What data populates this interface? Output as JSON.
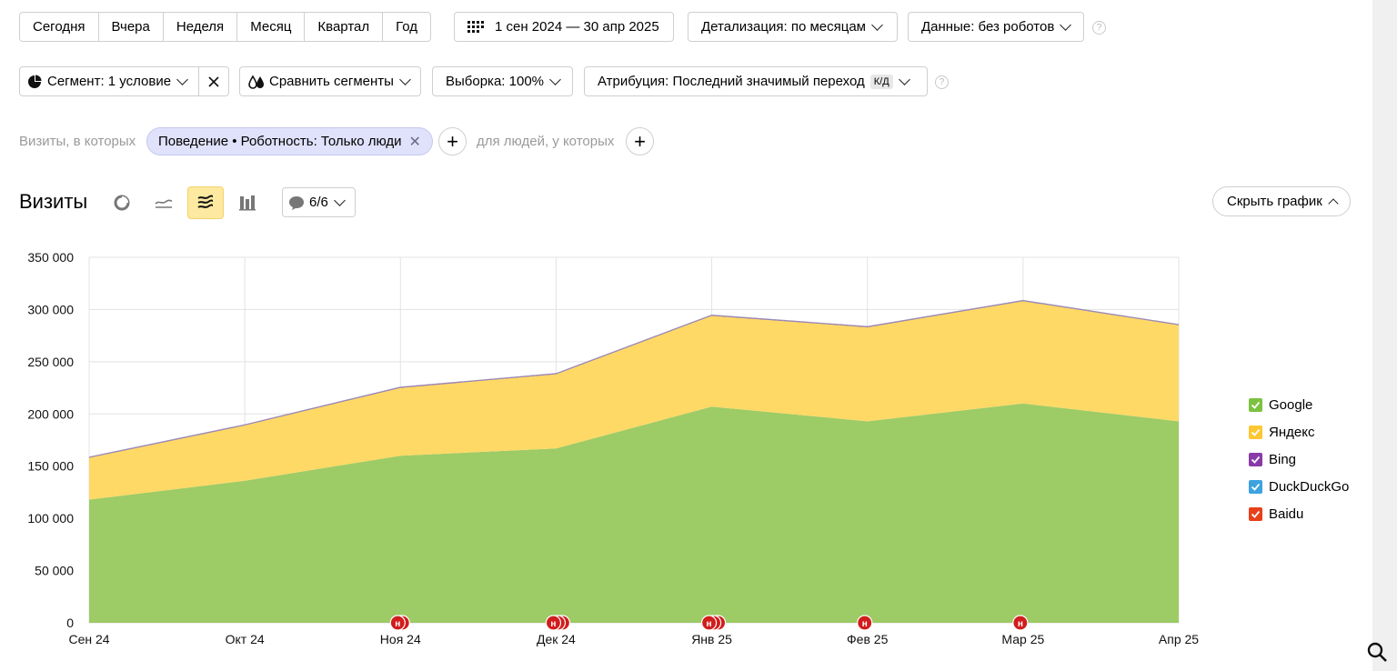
{
  "periods": [
    "Сегодня",
    "Вчера",
    "Неделя",
    "Месяц",
    "Квартал",
    "Год"
  ],
  "date_range": "1 сен 2024 — 30 апр 2025",
  "detail": "Детализация: по месяцам",
  "data_filter": "Данные: без роботов",
  "segment": "Сегмент: 1 условие",
  "compare": "Сравнить сегменты",
  "sample": "Выборка: 100%",
  "attribution": "Атрибуция: Последний значимый переход",
  "attribution_badge": "К/Д",
  "filter_prefix": "Визиты, в которых",
  "filter_chip": "Поведение • Роботность: Только люди",
  "people_suffix": "для людей, у которых",
  "chart_title": "Визиты",
  "notes_count": "6/6",
  "hide_chart": "Скрыть график",
  "legend": [
    {
      "name": "Google",
      "color": "#7cc241"
    },
    {
      "name": "Яндекс",
      "color": "#fdc733"
    },
    {
      "name": "Bing",
      "color": "#8a3aa8"
    },
    {
      "name": "DuckDuckGo",
      "color": "#3da3e0"
    },
    {
      "name": "Baidu",
      "color": "#e8401b"
    }
  ],
  "chart_data": {
    "type": "area",
    "stacked": true,
    "x": [
      "Сен 24",
      "Окт 24",
      "Ноя 24",
      "Дек 24",
      "Янв 25",
      "Фев 25",
      "Мар 25",
      "Апр 25"
    ],
    "ylim": [
      0,
      350000
    ],
    "yticks": [
      0,
      50000,
      100000,
      150000,
      200000,
      250000,
      300000,
      350000
    ],
    "ytick_labels": [
      "0",
      "50 000",
      "100 000",
      "150 000",
      "200 000",
      "250 000",
      "300 000",
      "350 000"
    ],
    "grid": true,
    "legend_position": "right",
    "series": [
      {
        "name": "Google",
        "color": "#9dcb66",
        "values": [
          118000,
          136000,
          160000,
          167000,
          207000,
          193000,
          210000,
          193000
        ]
      },
      {
        "name": "Яндекс",
        "color": "#ffd966",
        "values": [
          40000,
          53000,
          65000,
          71000,
          87000,
          90000,
          98000,
          92000
        ]
      },
      {
        "name": "Bing",
        "color": "#8a3aa8",
        "values": [
          500,
          500,
          500,
          500,
          500,
          500,
          500,
          500
        ]
      },
      {
        "name": "DuckDuckGo",
        "color": "#3da3e0",
        "values": [
          100,
          100,
          100,
          100,
          100,
          100,
          100,
          100
        ]
      },
      {
        "name": "Baidu",
        "color": "#e8401b",
        "values": [
          50,
          50,
          50,
          50,
          50,
          50,
          50,
          50
        ]
      }
    ],
    "notes": [
      {
        "x": "Ноя 24",
        "count": 2,
        "label": "н"
      },
      {
        "x": "Дек 24",
        "count": 3,
        "label": "н"
      },
      {
        "x": "Янв 25",
        "count": 3,
        "label": "н"
      },
      {
        "x": "Фев 25",
        "count": 1,
        "label": "н"
      },
      {
        "x": "Мар 25",
        "count": 1,
        "label": "н"
      }
    ]
  }
}
